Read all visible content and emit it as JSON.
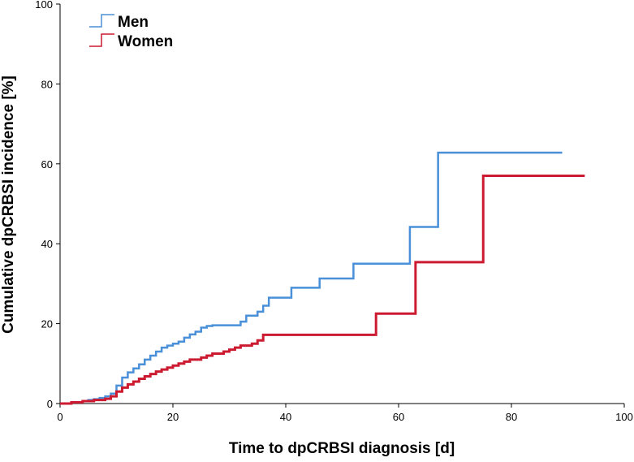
{
  "chart_data": {
    "type": "line",
    "step": true,
    "xlabel": "Time to dpCRBSI diagnosis [d]",
    "ylabel": "Cumulative dpCRBSI incidence [%]",
    "xlim": [
      0,
      100
    ],
    "ylim": [
      0,
      100
    ],
    "xticks": [
      "0",
      "20",
      "40",
      "60",
      "80",
      "100"
    ],
    "yticks": [
      "0",
      "20",
      "40",
      "60",
      "80",
      "100"
    ],
    "grid": false,
    "legend_position": "top-left",
    "series": [
      {
        "name": "Men",
        "color": "#4a90d9",
        "points": [
          [
            0,
            0
          ],
          [
            2,
            0.3
          ],
          [
            4,
            0.6
          ],
          [
            5,
            0.9
          ],
          [
            6,
            1.1
          ],
          [
            7,
            1.4
          ],
          [
            8,
            1.8
          ],
          [
            9,
            2.5
          ],
          [
            10,
            4.5
          ],
          [
            11,
            6.5
          ],
          [
            12,
            7.8
          ],
          [
            13,
            8.8
          ],
          [
            14,
            9.8
          ],
          [
            15,
            11
          ],
          [
            16,
            12
          ],
          [
            17,
            13
          ],
          [
            18,
            14
          ],
          [
            19,
            14.5
          ],
          [
            20,
            15
          ],
          [
            21,
            15.5
          ],
          [
            22,
            16.5
          ],
          [
            23,
            17.3
          ],
          [
            24,
            18
          ],
          [
            25,
            19
          ],
          [
            26,
            19.4
          ],
          [
            27,
            19.6
          ],
          [
            32,
            20.5
          ],
          [
            33,
            22
          ],
          [
            35,
            23
          ],
          [
            36,
            24.5
          ],
          [
            37,
            26.5
          ],
          [
            41,
            29
          ],
          [
            46,
            31.3
          ],
          [
            52,
            35
          ],
          [
            62,
            44.2
          ],
          [
            67,
            62.8
          ],
          [
            89,
            62.8
          ]
        ]
      },
      {
        "name": "Women",
        "color": "#cc1a30",
        "points": [
          [
            0,
            0
          ],
          [
            2,
            0.3
          ],
          [
            4,
            0.6
          ],
          [
            6,
            0.9
          ],
          [
            8,
            1.2
          ],
          [
            9,
            1.8
          ],
          [
            10,
            3
          ],
          [
            11,
            4
          ],
          [
            12,
            4.8
          ],
          [
            13,
            5.5
          ],
          [
            14,
            6.2
          ],
          [
            15,
            6.8
          ],
          [
            16,
            7.4
          ],
          [
            17,
            8
          ],
          [
            18,
            8.5
          ],
          [
            19,
            9
          ],
          [
            20,
            9.5
          ],
          [
            21,
            10
          ],
          [
            22,
            10.5
          ],
          [
            23,
            11
          ],
          [
            25,
            11.5
          ],
          [
            26,
            12
          ],
          [
            27,
            12.5
          ],
          [
            29,
            13
          ],
          [
            30,
            13.5
          ],
          [
            31,
            14
          ],
          [
            32,
            14.5
          ],
          [
            34,
            15
          ],
          [
            35,
            15.8
          ],
          [
            36,
            17.2
          ],
          [
            56,
            22.5
          ],
          [
            63,
            35.4
          ],
          [
            75,
            57
          ],
          [
            93,
            57
          ]
        ]
      }
    ]
  }
}
